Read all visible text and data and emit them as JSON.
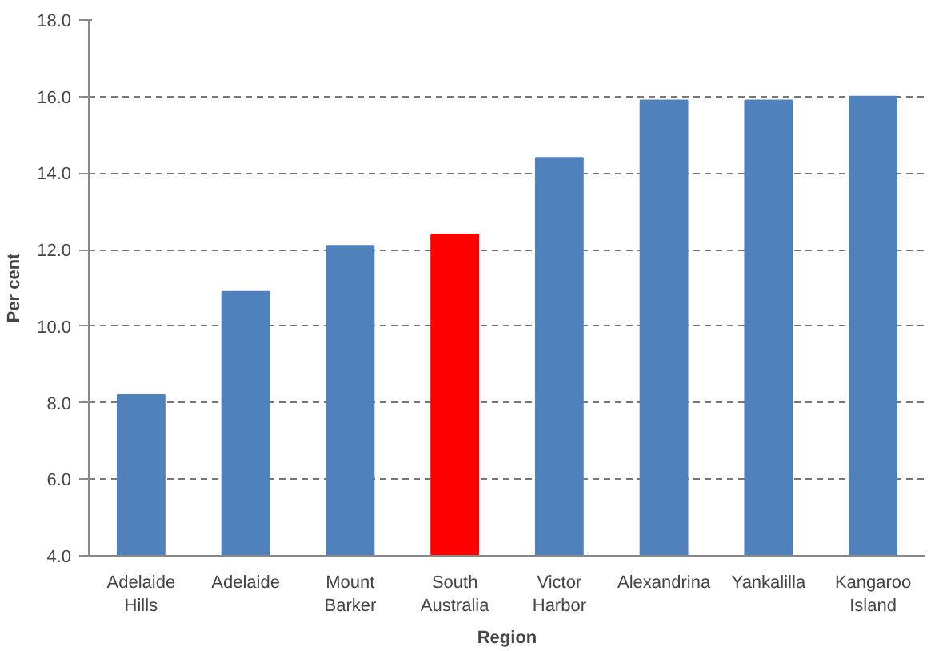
{
  "chart_data": {
    "type": "bar",
    "xlabel": "Region",
    "ylabel": "Per cent",
    "categories": [
      "Adelaide Hills",
      "Adelaide",
      "Mount Barker",
      "South Australia",
      "Victor Harbor",
      "Alexandrina",
      "Yankalilla",
      "Kangaroo Island"
    ],
    "values": [
      8.2,
      10.9,
      12.1,
      12.4,
      14.4,
      15.9,
      15.9,
      16.0
    ],
    "colors": [
      "#4f81bd",
      "#4f81bd",
      "#4f81bd",
      "#ff0000",
      "#4f81bd",
      "#4f81bd",
      "#4f81bd",
      "#4f81bd"
    ],
    "ylim": [
      4,
      18
    ],
    "yticks": [
      {
        "value": 4,
        "label": "4.0"
      },
      {
        "value": 6,
        "label": "6.0"
      },
      {
        "value": 8,
        "label": "8.0"
      },
      {
        "value": 10,
        "label": "10.0"
      },
      {
        "value": 12,
        "label": "12.0"
      },
      {
        "value": 14,
        "label": "14.0"
      },
      {
        "value": 16,
        "label": "16.0"
      },
      {
        "value": 18,
        "label": "18.0"
      }
    ],
    "grid": "y"
  }
}
